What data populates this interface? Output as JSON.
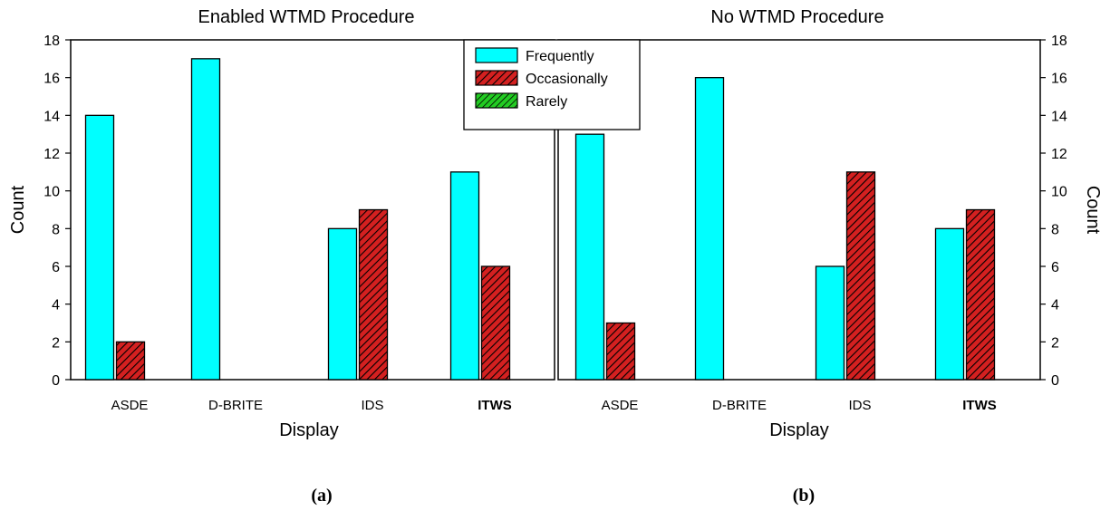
{
  "chart_data": [
    {
      "type": "bar",
      "title": "Enabled WTMD Procedure",
      "xlabel": "Display",
      "ylabel": "Count",
      "ylim": [
        0,
        18
      ],
      "yticks": [
        0,
        2,
        4,
        6,
        8,
        10,
        12,
        14,
        16,
        18
      ],
      "categories": [
        "ASDE",
        "D-BRITE",
        "IDS",
        "ITWS"
      ],
      "series": [
        {
          "name": "Frequently",
          "values": [
            14,
            17,
            8,
            11
          ]
        },
        {
          "name": "Occasionally",
          "values": [
            2,
            0,
            9,
            6
          ]
        },
        {
          "name": "Rarely",
          "values": [
            0,
            0,
            0,
            0
          ]
        }
      ],
      "caption": "(a)",
      "y_axis_side": "left"
    },
    {
      "type": "bar",
      "title": "No WTMD Procedure",
      "xlabel": "Display",
      "ylabel": "Count",
      "ylim": [
        0,
        18
      ],
      "yticks": [
        0,
        2,
        4,
        6,
        8,
        10,
        12,
        14,
        16,
        18
      ],
      "categories": [
        "ASDE",
        "D-BRITE",
        "IDS",
        "ITWS"
      ],
      "series": [
        {
          "name": "Frequently",
          "values": [
            13,
            16,
            6,
            8
          ]
        },
        {
          "name": "Occasionally",
          "values": [
            3,
            0,
            11,
            9
          ]
        },
        {
          "name": "Rarely",
          "values": [
            0,
            0,
            0,
            0
          ]
        }
      ],
      "caption": "(b)",
      "y_axis_side": "right"
    }
  ],
  "legend": {
    "placement": "top-center",
    "entries": [
      "Frequently",
      "Occasionally",
      "Rarely"
    ]
  },
  "colors": {
    "Frequently": "#00ffff",
    "Occasionally": "#d42020",
    "Rarely": "#22cc22"
  }
}
